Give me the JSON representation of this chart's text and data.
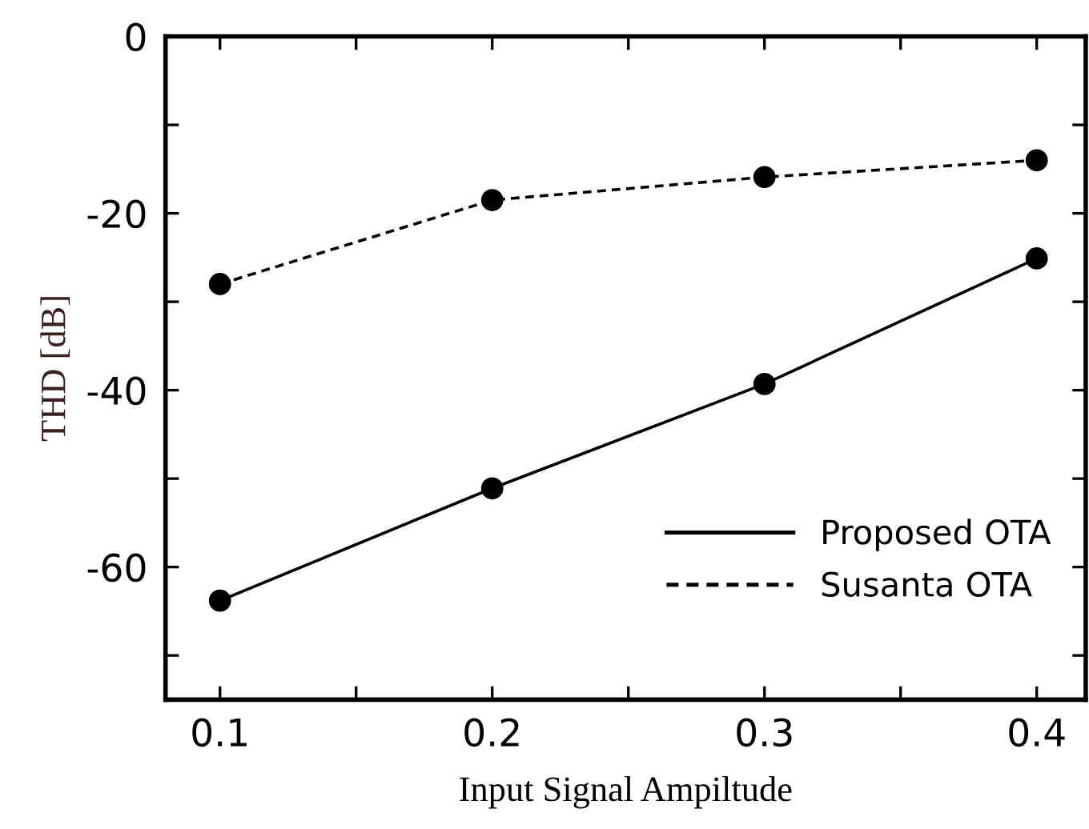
{
  "chart_data": {
    "type": "line",
    "xlabel": "Input Signal Ampiltude",
    "ylabel": "THD [dB]",
    "x": [
      0.1,
      0.2,
      0.3,
      0.4
    ],
    "series": [
      {
        "name": "Proposed OTA",
        "color": "#000000",
        "values": [
          -63.8,
          -51.1,
          -39.3,
          -25.1
        ],
        "line_style": "solid"
      },
      {
        "name": "Susanta OTA",
        "color": "#000000",
        "values": [
          -28.0,
          -18.5,
          -15.9,
          -14.0
        ],
        "line_style": "dashed"
      }
    ],
    "marker": "circle",
    "xlim": [
      0.08,
      0.418
    ],
    "ylim": [
      -75,
      0
    ],
    "xticks": [
      0.1,
      {
        "value": 0.15,
        "label": null
      },
      0.2,
      {
        "value": 0.25,
        "label": null
      },
      0.3,
      {
        "value": 0.35,
        "label": null
      },
      0.4
    ],
    "yticks": [
      0,
      {
        "value": -10,
        "label": null
      },
      -20,
      {
        "value": -30,
        "label": null
      },
      -40,
      {
        "value": -50,
        "label": null
      },
      -60,
      {
        "value": -70,
        "label": null
      }
    ],
    "grid": false,
    "legend": "bottom right"
  }
}
